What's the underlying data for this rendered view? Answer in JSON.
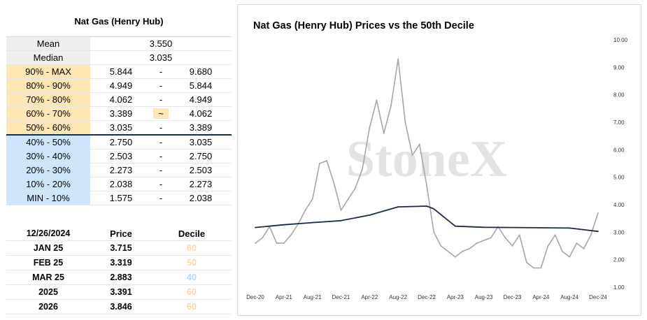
{
  "stats": {
    "title": "Nat Gas (Henry Hub)",
    "mean_label": "Mean",
    "mean_value": "3.550",
    "median_label": "Median",
    "median_value": "3.035",
    "deciles": [
      {
        "label": "90% - MAX",
        "low": "5.844",
        "sep": "-",
        "high": "9.680",
        "color": "orange"
      },
      {
        "label": "80% - 90%",
        "low": "4.949",
        "sep": "-",
        "high": "5.844",
        "color": "orange"
      },
      {
        "label": "70% - 80%",
        "low": "4.062",
        "sep": "-",
        "high": "4.949",
        "color": "orange"
      },
      {
        "label": "60% - 70%",
        "low": "3.389",
        "sep": "~",
        "high": "4.062",
        "color": "orange"
      },
      {
        "label": "50% - 60%",
        "low": "3.035",
        "sep": "-",
        "high": "3.389",
        "color": "orange"
      },
      {
        "label": "40% - 50%",
        "low": "2.750",
        "sep": "-",
        "high": "3.035",
        "color": "blue"
      },
      {
        "label": "30% - 40%",
        "low": "2.503",
        "sep": "-",
        "high": "2.750",
        "color": "blue"
      },
      {
        "label": "20% - 30%",
        "low": "2.273",
        "sep": "-",
        "high": "2.503",
        "color": "blue"
      },
      {
        "label": "10% - 20%",
        "low": "2.038",
        "sep": "-",
        "high": "2.273",
        "color": "blue"
      },
      {
        "label": "MIN - 10%",
        "low": "1.575",
        "sep": "-",
        "high": "2.038",
        "color": "blue"
      }
    ]
  },
  "forecast": {
    "date": "12/26/2024",
    "price_header": "Price",
    "decile_header": "Decile",
    "rows": [
      {
        "contract": "JAN 25",
        "price": "3.715",
        "decile": "60",
        "color": "orange"
      },
      {
        "contract": "FEB 25",
        "price": "3.319",
        "decile": "50",
        "color": "orange"
      },
      {
        "contract": "MAR 25",
        "price": "2.883",
        "decile": "40",
        "color": "blue"
      },
      {
        "contract": "2025",
        "price": "3.391",
        "decile": "60",
        "color": "orange"
      },
      {
        "contract": "2026",
        "price": "3.846",
        "decile": "60",
        "color": "orange"
      }
    ]
  },
  "colors": {
    "price_line": "#a6a6a6",
    "decile_line": "#1a2b4c",
    "orange_fill": "#ffe6b3",
    "blue_fill": "#cfe5fb",
    "watermark": "#e3e3e3"
  },
  "watermark_text": "StoneX",
  "chart_data": {
    "type": "line",
    "title": "Nat Gas (Henry Hub) Prices vs the 50th Decile",
    "xlabel": "",
    "ylabel": "",
    "ylim": [
      1.0,
      10.0
    ],
    "y_ticks": [
      "1.00",
      "2.00",
      "3.00",
      "4.00",
      "5.00",
      "6.00",
      "7.00",
      "8.00",
      "9.00",
      "10.00"
    ],
    "y_axis_side": "right",
    "x_ticks": [
      "Dec-20",
      "Apr-21",
      "Aug-21",
      "Dec-21",
      "Apr-22",
      "Aug-22",
      "Dec-22",
      "Apr-23",
      "Aug-23",
      "Dec-23",
      "Apr-24",
      "Aug-24",
      "Dec-24"
    ],
    "grid": false,
    "series": [
      {
        "name": "",
        "x": [
          "Dec-20",
          "Jan-21",
          "Feb-21",
          "Mar-21",
          "Apr-21",
          "May-21",
          "Jun-21",
          "Jul-21",
          "Aug-21",
          "Sep-21",
          "Oct-21",
          "Nov-21",
          "Dec-21",
          "Jan-22",
          "Feb-22",
          "Mar-22",
          "Apr-22",
          "May-22",
          "Jun-22",
          "Jul-22",
          "Aug-22",
          "Sep-22",
          "Oct-22",
          "Nov-22",
          "Dec-22",
          "Jan-23",
          "Feb-23",
          "Mar-23",
          "Apr-23",
          "May-23",
          "Jun-23",
          "Jul-23",
          "Aug-23",
          "Sep-23",
          "Oct-23",
          "Nov-23",
          "Dec-23",
          "Jan-24",
          "Feb-24",
          "Mar-24",
          "Apr-24",
          "May-24",
          "Jun-24",
          "Jul-24",
          "Aug-24",
          "Sep-24",
          "Oct-24",
          "Nov-24",
          "Dec-24"
        ],
        "values": [
          2.6,
          2.8,
          3.2,
          2.6,
          2.6,
          2.9,
          3.3,
          3.8,
          4.2,
          5.5,
          5.6,
          4.8,
          3.8,
          4.2,
          4.6,
          5.3,
          6.8,
          7.8,
          6.6,
          7.6,
          9.3,
          7.0,
          5.8,
          6.2,
          4.7,
          3.0,
          2.5,
          2.3,
          2.1,
          2.3,
          2.4,
          2.6,
          2.7,
          2.8,
          3.2,
          2.8,
          2.5,
          2.9,
          1.9,
          1.7,
          1.7,
          2.5,
          2.9,
          2.3,
          2.1,
          2.6,
          2.4,
          2.9,
          3.7
        ]
      },
      {
        "name": "",
        "x": [
          "Dec-20",
          "Apr-21",
          "Aug-21",
          "Dec-21",
          "Apr-22",
          "Aug-22",
          "Dec-22",
          "Jan-23",
          "Apr-23",
          "Aug-23",
          "Dec-23",
          "Apr-24",
          "Aug-24",
          "Dec-24"
        ],
        "values": [
          3.17,
          3.27,
          3.35,
          3.42,
          3.62,
          3.92,
          3.95,
          3.85,
          3.22,
          3.18,
          3.17,
          3.16,
          3.15,
          3.03
        ]
      }
    ]
  }
}
